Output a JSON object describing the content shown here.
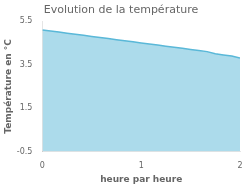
{
  "chart_data": {
    "type": "area",
    "title": "Evolution de la température",
    "x_label": "heure par heure",
    "y_label": "Température en °C",
    "x": [
      0.0,
      0.083,
      0.167,
      0.25,
      0.333,
      0.417,
      0.5,
      0.583,
      0.667,
      0.75,
      0.833,
      0.917,
      1.0,
      1.083,
      1.167,
      1.25,
      1.333,
      1.417,
      1.5,
      1.583,
      1.667,
      1.75,
      1.833,
      1.917,
      2.0
    ],
    "values": [
      5.1,
      5.05,
      5.0,
      4.95,
      4.9,
      4.85,
      4.8,
      4.75,
      4.7,
      4.65,
      4.6,
      4.55,
      4.5,
      4.45,
      4.4,
      4.35,
      4.3,
      4.25,
      4.2,
      4.15,
      4.1,
      4.0,
      3.95,
      3.9,
      3.8
    ],
    "color": "#5ab8d8",
    "xlim": [
      0,
      2
    ],
    "xticks": [
      0,
      1,
      2
    ],
    "ylim": [
      -0.5,
      5.5
    ],
    "yticks": [
      -0.5,
      1.5,
      3.5,
      5.5
    ],
    "grid": false,
    "legend": false
  }
}
